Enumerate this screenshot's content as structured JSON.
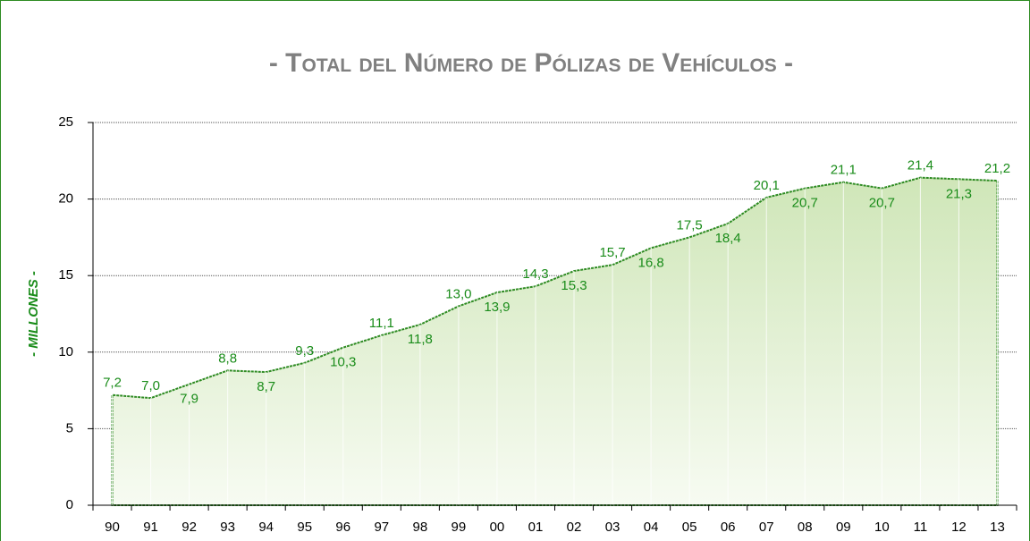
{
  "chart_data": {
    "type": "area",
    "title": "- Total del Número de Pólizas de Vehículos -",
    "y_label": "- MILLONES -",
    "categories": [
      "90",
      "91",
      "92",
      "93",
      "94",
      "95",
      "96",
      "97",
      "98",
      "99",
      "00",
      "01",
      "02",
      "03",
      "04",
      "05",
      "06",
      "07",
      "08",
      "09",
      "10",
      "11",
      "12",
      "13"
    ],
    "values": [
      7.2,
      7.0,
      7.9,
      8.8,
      8.7,
      9.3,
      10.3,
      11.1,
      11.8,
      13.0,
      13.9,
      14.3,
      15.3,
      15.7,
      16.8,
      17.5,
      18.4,
      20.1,
      20.7,
      21.1,
      20.7,
      21.4,
      21.3,
      21.2
    ],
    "value_labels": [
      "7,2",
      "7,0",
      "7,9",
      "8,8",
      "8,7",
      "9,3",
      "10,3",
      "11,1",
      "11,8",
      "13,0",
      "13,9",
      "14,3",
      "15,3",
      "15,7",
      "16,8",
      "17,5",
      "18,4",
      "20,1",
      "20,7",
      "21,1",
      "20,7",
      "21,4",
      "21,3",
      "21,2"
    ],
    "color": "#2e8b22",
    "ylim": [
      0,
      25
    ],
    "yticks": [
      0,
      5,
      10,
      15,
      20,
      25
    ],
    "grid": true
  }
}
